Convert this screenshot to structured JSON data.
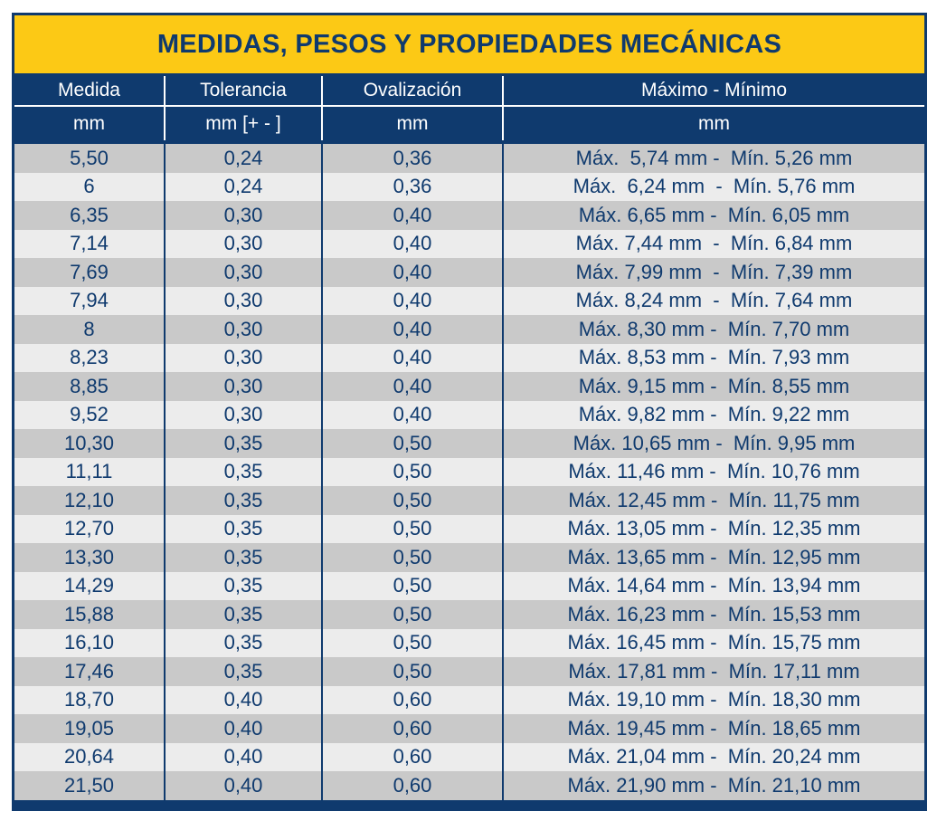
{
  "title": "MEDIDAS, PESOS Y PROPIEDADES MECÁNICAS",
  "headers": [
    "Medida",
    "Tolerancia",
    "Ovalización",
    "Máximo - Mínimo"
  ],
  "units": [
    "mm",
    "mm [+ - ]",
    "mm",
    "mm"
  ],
  "rows": [
    [
      "5,50",
      "0,24",
      "0,36",
      "Máx.  5,74 mm -  Mín. 5,26 mm"
    ],
    [
      "6",
      "0,24",
      "0,36",
      "Máx.  6,24 mm  -  Mín. 5,76 mm"
    ],
    [
      "6,35",
      "0,30",
      "0,40",
      "Máx. 6,65 mm -  Mín. 6,05 mm"
    ],
    [
      "7,14",
      "0,30",
      "0,40",
      "Máx. 7,44 mm  -  Mín. 6,84 mm"
    ],
    [
      "7,69",
      "0,30",
      "0,40",
      "Máx. 7,99 mm  -  Mín. 7,39 mm"
    ],
    [
      "7,94",
      "0,30",
      "0,40",
      "Máx. 8,24 mm  -  Mín. 7,64 mm"
    ],
    [
      "8",
      "0,30",
      "0,40",
      "Máx. 8,30 mm -  Mín. 7,70 mm"
    ],
    [
      "8,23",
      "0,30",
      "0,40",
      "Máx. 8,53 mm -  Mín. 7,93 mm"
    ],
    [
      "8,85",
      "0,30",
      "0,40",
      "Máx. 9,15 mm -  Mín. 8,55 mm"
    ],
    [
      "9,52",
      "0,30",
      "0,40",
      "Máx. 9,82 mm -  Mín. 9,22 mm"
    ],
    [
      "10,30",
      "0,35",
      "0,50",
      "Máx. 10,65 mm -  Mín. 9,95 mm"
    ],
    [
      "11,11",
      "0,35",
      "0,50",
      "Máx. 11,46 mm -  Mín. 10,76 mm"
    ],
    [
      "12,10",
      "0,35",
      "0,50",
      "Máx. 12,45 mm -  Mín. 11,75 mm"
    ],
    [
      "12,70",
      "0,35",
      "0,50",
      "Máx. 13,05 mm -  Mín. 12,35 mm"
    ],
    [
      "13,30",
      "0,35",
      "0,50",
      "Máx. 13,65 mm -  Mín. 12,95 mm"
    ],
    [
      "14,29",
      "0,35",
      "0,50",
      "Máx. 14,64 mm -  Mín. 13,94 mm"
    ],
    [
      "15,88",
      "0,35",
      "0,50",
      "Máx. 16,23 mm -  Mín. 15,53 mm"
    ],
    [
      "16,10",
      "0,35",
      "0,50",
      "Máx. 16,45 mm -  Mín. 15,75 mm"
    ],
    [
      "17,46",
      "0,35",
      "0,50",
      "Máx. 17,81 mm -  Mín. 17,11 mm"
    ],
    [
      "18,70",
      "0,40",
      "0,60",
      "Máx. 19,10 mm -  Mín. 18,30 mm"
    ],
    [
      "19,05",
      "0,40",
      "0,60",
      "Máx. 19,45 mm -  Mín. 18,65 mm"
    ],
    [
      "20,64",
      "0,40",
      "0,60",
      "Máx. 21,04 mm -  Mín. 20,24 mm"
    ],
    [
      "21,50",
      "0,40",
      "0,60",
      "Máx. 21,90 mm -  Mín. 21,10 mm"
    ]
  ],
  "colors": {
    "navy": "#0f3a6e",
    "yellow": "#fcc915",
    "row_dark": "#c9c9c9",
    "row_light": "#ececec"
  }
}
